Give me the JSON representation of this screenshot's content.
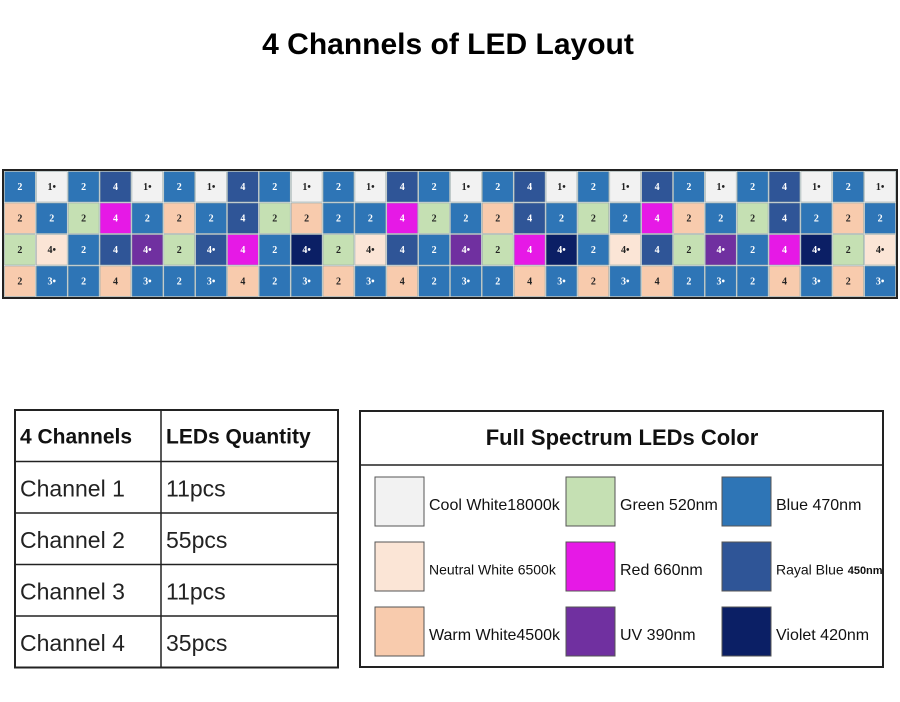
{
  "title": "4 Channels of LED Layout",
  "layout": {
    "rows": [
      [
        "2",
        "1•",
        "2",
        "4",
        "1•",
        "2",
        "1•",
        "4",
        "2",
        "1•",
        "2",
        "1•",
        "4",
        "2",
        "1•",
        "2",
        "4",
        "1•",
        "2",
        "1•",
        "4",
        "2",
        "1•",
        "2",
        "4",
        "1•",
        "2",
        "1•"
      ],
      [
        "2",
        "2",
        "2",
        "4",
        "2",
        "2",
        "2",
        "4",
        "2",
        "2",
        "2",
        "2",
        "4",
        "2",
        "2",
        "2",
        "4",
        "2",
        "2",
        "2",
        "4",
        "2",
        "2",
        "2",
        "4",
        "2",
        "2",
        "2"
      ],
      [
        "2",
        "4•",
        "2",
        "4",
        "4•",
        "2",
        "4•",
        "4",
        "2",
        "4•",
        "2",
        "4•",
        "4",
        "2",
        "4•",
        "2",
        "4",
        "4•",
        "2",
        "4•",
        "4",
        "2",
        "4•",
        "2",
        "4",
        "4•",
        "2",
        "4•"
      ],
      [
        "2",
        "3•",
        "2",
        "4",
        "3•",
        "2",
        "3•",
        "4",
        "2",
        "3•",
        "2",
        "3•",
        "4",
        "2",
        "3•",
        "2",
        "4",
        "3•",
        "2",
        "3•",
        "4",
        "2",
        "3•",
        "2",
        "4",
        "3•",
        "2",
        "3•"
      ]
    ]
  },
  "table": {
    "header": [
      "4 Channels",
      "LEDs Quantity"
    ],
    "rows": [
      [
        "Channel 1",
        "11pcs"
      ],
      [
        "Channel 2",
        "55pcs"
      ],
      [
        "Channel 3",
        "11pcs"
      ],
      [
        "Channel 4",
        "35pcs"
      ]
    ]
  },
  "legend": {
    "title": "Full Spectrum LEDs Color",
    "items": [
      {
        "label": "Cool White18000k"
      },
      {
        "label": "Green 520nm"
      },
      {
        "label": "Blue 470nm"
      },
      {
        "label": "Neutral White 6500k"
      },
      {
        "label": "Red 660nm"
      },
      {
        "label": "Rayal Blue",
        "detail": "450nm"
      },
      {
        "label": "Warm White4500k"
      },
      {
        "label": "UV 390nm"
      },
      {
        "label": "Violet 420nm"
      }
    ]
  }
}
